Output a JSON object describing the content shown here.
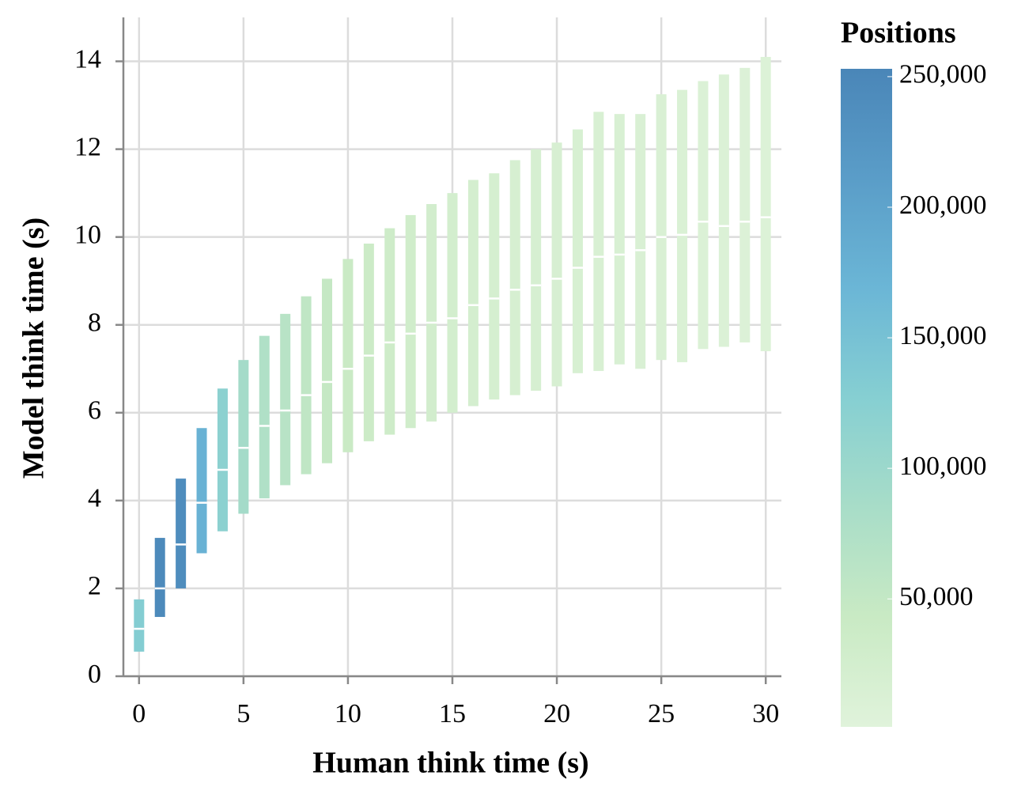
{
  "chart_data": {
    "type": "rangebar",
    "xlabel": "Human think time (s)",
    "ylabel": "Model think time (s)",
    "x": [
      0,
      1,
      2,
      3,
      4,
      5,
      6,
      7,
      8,
      9,
      10,
      11,
      12,
      13,
      14,
      15,
      16,
      17,
      18,
      19,
      20,
      21,
      22,
      23,
      24,
      25,
      26,
      27,
      28,
      29,
      30
    ],
    "low": [
      0.56,
      1.35,
      2.0,
      2.8,
      3.3,
      3.7,
      4.05,
      4.35,
      4.6,
      4.85,
      5.1,
      5.35,
      5.5,
      5.65,
      5.8,
      6.0,
      6.15,
      6.3,
      6.4,
      6.5,
      6.6,
      6.9,
      6.95,
      7.1,
      7.0,
      7.2,
      7.15,
      7.45,
      7.5,
      7.6,
      7.4
    ],
    "high": [
      1.75,
      3.15,
      4.5,
      5.65,
      6.55,
      7.2,
      7.75,
      8.25,
      8.65,
      9.05,
      9.5,
      9.85,
      10.2,
      10.5,
      10.75,
      11.0,
      11.3,
      11.45,
      11.75,
      12.0,
      12.15,
      12.45,
      12.85,
      12.8,
      12.8,
      13.25,
      13.35,
      13.55,
      13.7,
      13.85,
      14.1
    ],
    "median": [
      1.08,
      2.0,
      3.0,
      3.95,
      4.7,
      5.2,
      5.7,
      6.05,
      6.4,
      6.7,
      7.0,
      7.3,
      7.6,
      7.8,
      8.05,
      8.15,
      8.45,
      8.6,
      8.8,
      8.9,
      9.05,
      9.3,
      9.55,
      9.6,
      9.7,
      10.0,
      10.05,
      10.35,
      10.25,
      10.35,
      10.45
    ],
    "count": [
      130000,
      245000,
      240000,
      175000,
      120000,
      90000,
      75000,
      65000,
      55000,
      48000,
      42000,
      37000,
      33000,
      30000,
      27000,
      25000,
      23000,
      21000,
      20000,
      19000,
      18000,
      17000,
      16000,
      15000,
      14000,
      13000,
      12000,
      11000,
      10000,
      9000,
      8000
    ],
    "xlim": [
      -0.75,
      30.75
    ],
    "xticks": [
      0,
      5,
      10,
      15,
      20,
      25,
      30
    ],
    "ylim": [
      0,
      15
    ],
    "yticks": [
      0,
      2,
      4,
      6,
      8,
      10,
      12,
      14
    ],
    "grid": true,
    "colorbar": {
      "title": "Positions",
      "lim": [
        1000,
        253000
      ],
      "colors": [
        "#e0f3db",
        "#c9eac4",
        "#a8ddc8",
        "#86cfd2",
        "#6bb6d6",
        "#5a9dc8",
        "#4a86b8"
      ],
      "ticks": [
        {
          "value": 50000,
          "label": "50,000"
        },
        {
          "value": 100000,
          "label": "100,000"
        },
        {
          "value": 150000,
          "label": "150,000"
        },
        {
          "value": 200000,
          "label": "200,000"
        },
        {
          "value": 250000,
          "label": "250,000"
        }
      ]
    },
    "median_color": "#ffffff"
  }
}
